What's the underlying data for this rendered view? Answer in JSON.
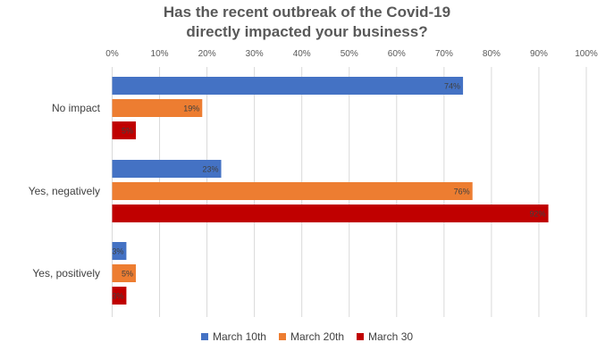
{
  "title_line1": "Has the recent outbreak of the Covid-19",
  "title_line2": "directly impacted your business?",
  "chart_data": {
    "type": "bar",
    "orientation": "horizontal",
    "title": "Has the recent outbreak of the Covid-19 directly impacted your business?",
    "categories": [
      "No impact",
      "Yes, negatively",
      "Yes, positively"
    ],
    "series": [
      {
        "name": "March 10th",
        "color": "#4472C4",
        "values": [
          74,
          23,
          3
        ]
      },
      {
        "name": "March 20th",
        "color": "#ED7D31",
        "values": [
          19,
          76,
          5
        ]
      },
      {
        "name": "March 30",
        "color": "#C00000",
        "values": [
          5,
          92,
          3
        ]
      }
    ],
    "xlim": [
      0,
      100
    ],
    "x_ticks": [
      "0%",
      "10%",
      "20%",
      "30%",
      "40%",
      "50%",
      "60%",
      "70%",
      "80%",
      "90%",
      "100%"
    ],
    "value_suffix": "%",
    "grid": true,
    "legend_position": "bottom"
  }
}
